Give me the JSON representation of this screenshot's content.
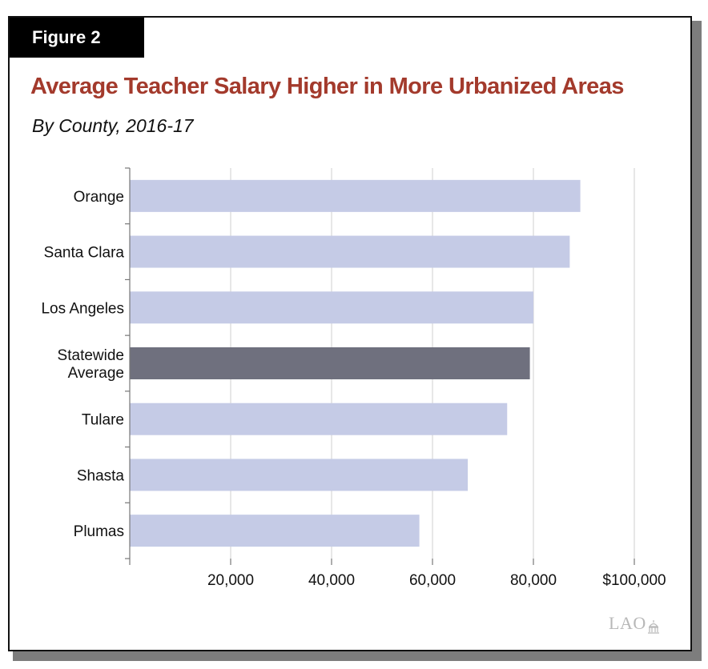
{
  "figure": {
    "label": "Figure 2",
    "title": "Average Teacher Salary Higher in More Urbanized Areas",
    "subtitle": "By County, 2016-17",
    "logo_text": "LAO"
  },
  "colors": {
    "title": "#a33a2c",
    "bar": "#c5cbe6",
    "highlight_bar": "#6f707e",
    "grid": "#cfcfcf",
    "axis": "#777777"
  },
  "chart_data": {
    "type": "bar",
    "orientation": "horizontal",
    "title": "Average Teacher Salary Higher in More Urbanized Areas",
    "subtitle": "By County, 2016-17",
    "categories": [
      "Orange",
      "Santa Clara",
      "Los Angeles",
      "Statewide Average",
      "Tulare",
      "Shasta",
      "Plumas"
    ],
    "category_label_lines": [
      [
        "Orange"
      ],
      [
        "Santa Clara"
      ],
      [
        "Los Angeles"
      ],
      [
        "Statewide",
        "Average"
      ],
      [
        "Tulare"
      ],
      [
        "Shasta"
      ],
      [
        "Plumas"
      ]
    ],
    "values": [
      89300,
      87200,
      80000,
      79300,
      74800,
      67000,
      57400
    ],
    "highlight": "Statewide Average",
    "xlim": [
      0,
      100000
    ],
    "x_ticks": [
      20000,
      40000,
      60000,
      80000,
      100000
    ],
    "x_tick_labels": [
      "20,000",
      "40,000",
      "60,000",
      "80,000",
      "$100,000"
    ],
    "grid": true,
    "legend": "none"
  }
}
